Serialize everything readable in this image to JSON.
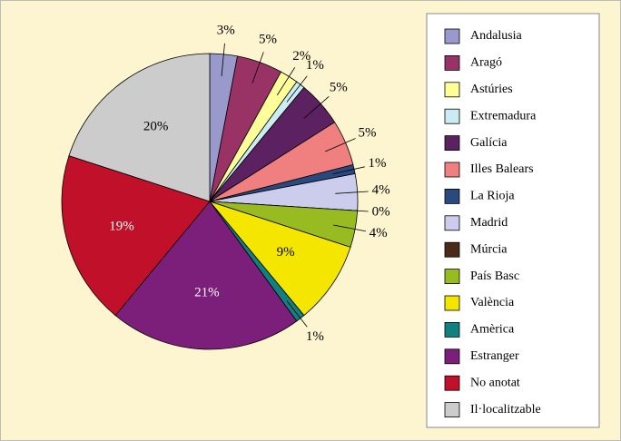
{
  "chart_data": {
    "type": "pie",
    "categories": [
      "Andalusia",
      "Aragó",
      "Astúries",
      "Extremadura",
      "Galícia",
      "Illes Balears",
      "La Rioja",
      "Madrid",
      "Múrcia",
      "País Basc",
      "València",
      "Amèrica",
      "Estranger",
      "No anotat",
      "Il·localitzable"
    ],
    "values": [
      3,
      5,
      2,
      1,
      5,
      5,
      1,
      4,
      0,
      4,
      9,
      1,
      21,
      19,
      20
    ],
    "value_labels": [
      "3%",
      "5%",
      "2%",
      "1%",
      "5%",
      "5%",
      "1%",
      "4%",
      "0%",
      "4%",
      "9%",
      "1%",
      "21%",
      "19%",
      "20%"
    ],
    "colors": [
      "#9999cc",
      "#993366",
      "#ffff99",
      "#ccecf4",
      "#5c2160",
      "#f08080",
      "#2a4a7f",
      "#ccccec",
      "#4a2a1a",
      "#99bb22",
      "#f5e600",
      "#138080",
      "#7b1f7b",
      "#c0102a",
      "#cccccc"
    ],
    "legend": "right"
  }
}
